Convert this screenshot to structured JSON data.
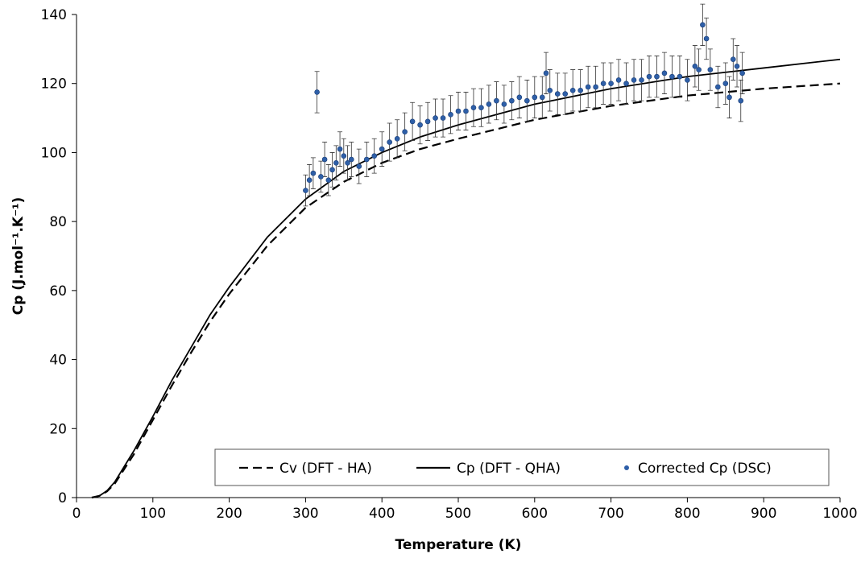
{
  "chart_data": {
    "type": "line",
    "xlabel": "Temperature (K)",
    "ylabel": "Cp (J.mol⁻¹.K⁻¹)",
    "xlim": [
      0,
      1000
    ],
    "xticks": [
      0,
      100,
      200,
      300,
      400,
      500,
      600,
      700,
      800,
      900,
      1000
    ],
    "ylim": [
      0,
      140
    ],
    "yticks": [
      0,
      20,
      40,
      60,
      80,
      100,
      120,
      140
    ],
    "legend": "bottom-right",
    "series": [
      {
        "name": "Cv (DFT - HA)",
        "type": "line",
        "style": "dashed",
        "color": "#000000",
        "x": [
          20,
          30,
          40,
          50,
          75,
          100,
          125,
          150,
          175,
          200,
          250,
          300,
          350,
          400,
          450,
          500,
          600,
          700,
          800,
          900,
          1000
        ],
        "values": [
          0,
          0.5,
          1.8,
          4,
          12.5,
          22.5,
          32.5,
          42,
          51,
          59,
          73,
          84,
          91.5,
          97,
          101,
          104,
          109.5,
          113.5,
          116.5,
          118.5,
          120
        ]
      },
      {
        "name": "Cp (DFT - QHA)",
        "type": "line",
        "style": "solid",
        "color": "#000000",
        "x": [
          20,
          30,
          40,
          50,
          75,
          100,
          125,
          150,
          175,
          200,
          250,
          300,
          350,
          400,
          450,
          500,
          600,
          700,
          800,
          900,
          1000
        ],
        "values": [
          0,
          0.5,
          2,
          4.5,
          13.5,
          23.5,
          34,
          43.5,
          53,
          61,
          75.5,
          86.5,
          94.5,
          100,
          104.5,
          108,
          114,
          118.5,
          122,
          124.5,
          127
        ]
      },
      {
        "name": "Corrected Cp (DSC)",
        "type": "scatter",
        "color": "#2e5fa8",
        "x": [
          300,
          305,
          310,
          315,
          320,
          325,
          330,
          335,
          340,
          345,
          350,
          355,
          360,
          370,
          380,
          390,
          400,
          410,
          420,
          430,
          440,
          450,
          460,
          470,
          480,
          490,
          500,
          510,
          520,
          530,
          540,
          550,
          560,
          570,
          580,
          590,
          600,
          610,
          615,
          620,
          630,
          640,
          650,
          660,
          670,
          680,
          690,
          700,
          710,
          720,
          730,
          740,
          750,
          760,
          770,
          780,
          790,
          800,
          810,
          815,
          820,
          825,
          830,
          840,
          850,
          855,
          860,
          865,
          870,
          872
        ],
        "values": [
          89,
          92,
          94,
          117.5,
          93,
          98,
          92,
          95,
          97,
          101,
          99,
          97,
          98,
          96,
          98,
          99,
          101,
          103,
          104,
          106,
          109,
          108,
          109,
          110,
          110,
          111,
          112,
          112,
          113,
          113,
          114,
          115,
          114,
          115,
          116,
          115,
          116,
          116,
          123,
          118,
          117,
          117,
          118,
          118,
          119,
          119,
          120,
          120,
          121,
          120,
          121,
          121,
          122,
          122,
          123,
          122,
          122,
          121,
          125,
          124,
          137,
          133,
          124,
          119,
          120,
          116,
          127,
          125,
          115,
          123
        ],
        "errors": [
          4.5,
          4.5,
          4.5,
          6,
          4.5,
          5,
          4.5,
          5,
          5,
          5,
          5,
          5,
          5,
          5,
          5,
          5,
          5,
          5.5,
          5.5,
          5.5,
          5.5,
          5.5,
          5.5,
          5.5,
          5.5,
          5.5,
          5.5,
          5.5,
          5.5,
          5.5,
          5.5,
          5.5,
          5.5,
          5.5,
          6,
          6,
          6,
          6,
          6,
          6,
          6,
          6,
          6,
          6,
          6,
          6,
          6,
          6,
          6,
          6,
          6,
          6,
          6,
          6,
          6,
          6,
          6,
          6,
          6,
          6,
          6,
          6,
          6,
          6,
          6,
          6,
          6,
          6,
          6,
          6
        ]
      }
    ]
  }
}
